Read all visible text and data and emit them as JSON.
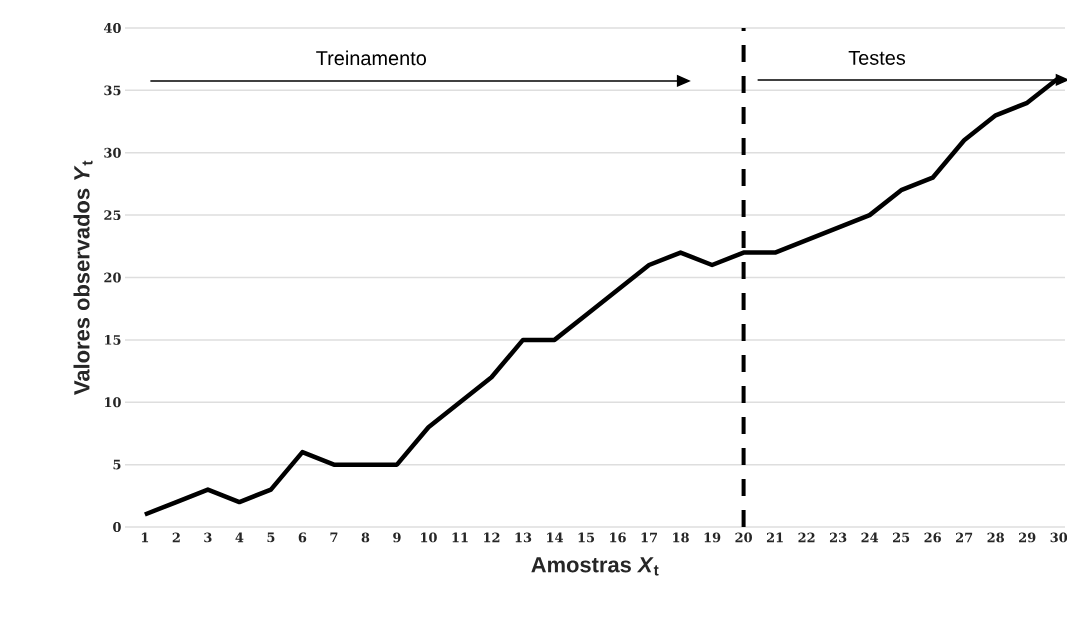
{
  "chart_data": {
    "type": "line",
    "xlabel": "Amostras *X*$_{t}$",
    "ylabel": "Valores observados *Y*$_{t}$",
    "categories": [
      "1",
      "2",
      "3",
      "4",
      "5",
      "6",
      "7",
      "8",
      "9",
      "10",
      "11",
      "12",
      "13",
      "14",
      "15",
      "16",
      "17",
      "18",
      "19",
      "20",
      "21",
      "22",
      "23",
      "24",
      "25",
      "26",
      "27",
      "28",
      "29",
      "30"
    ],
    "series": [
      {
        "color": "#000000",
        "values": [
          1,
          2,
          3,
          2,
          3,
          6,
          5,
          5,
          5,
          8,
          10,
          12,
          15,
          15,
          17,
          19,
          21,
          22,
          21,
          22,
          22,
          23,
          24,
          25,
          27,
          28,
          31,
          33,
          34,
          36
        ]
      }
    ],
    "ylim": [
      0,
      40
    ],
    "yticks": [
      0,
      5,
      10,
      15,
      20,
      25,
      30,
      35,
      40
    ],
    "grid": "y",
    "marker": "none",
    "line_style": "solid",
    "ref_lines": [
      {
        "axis": "x",
        "value": "20",
        "color": "#000000",
        "line_style": "dashed"
      }
    ],
    "annotations": [
      "Treinamento",
      "Testes"
    ]
  }
}
